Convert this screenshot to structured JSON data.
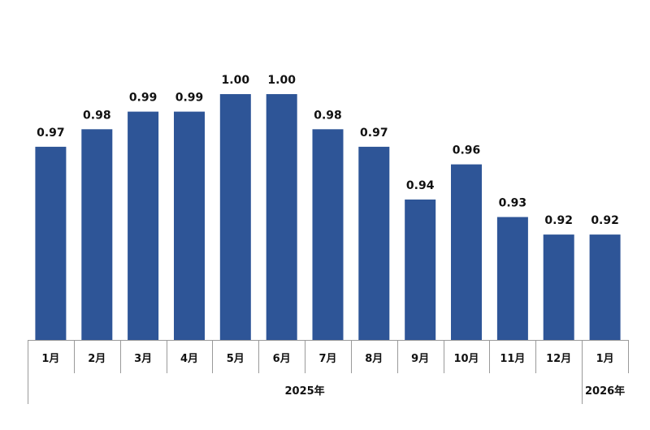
{
  "chart_data": {
    "type": "bar",
    "categories": [
      "1月",
      "2月",
      "3月",
      "4月",
      "5月",
      "6月",
      "7月",
      "8月",
      "9月",
      "10月",
      "11月",
      "12月",
      "1月"
    ],
    "values": [
      0.97,
      0.98,
      0.99,
      0.99,
      1.0,
      1.0,
      0.98,
      0.97,
      0.94,
      0.96,
      0.93,
      0.92,
      0.92
    ],
    "value_labels": [
      "0.97",
      "0.98",
      "0.99",
      "0.99",
      "1.00",
      "1.00",
      "0.98",
      "0.97",
      "0.94",
      "0.96",
      "0.93",
      "0.92",
      "0.92"
    ],
    "groups": [
      {
        "label": "2025年",
        "span": 12
      },
      {
        "label": "2026年",
        "span": 1
      }
    ],
    "title": "",
    "xlabel": "",
    "ylabel": "",
    "ylim": [
      0.86,
      1.0
    ],
    "grid": false,
    "legend": "none",
    "bar_color": "#2e5597",
    "text_color": "#111111",
    "axis_color": "#9a9a9a"
  }
}
